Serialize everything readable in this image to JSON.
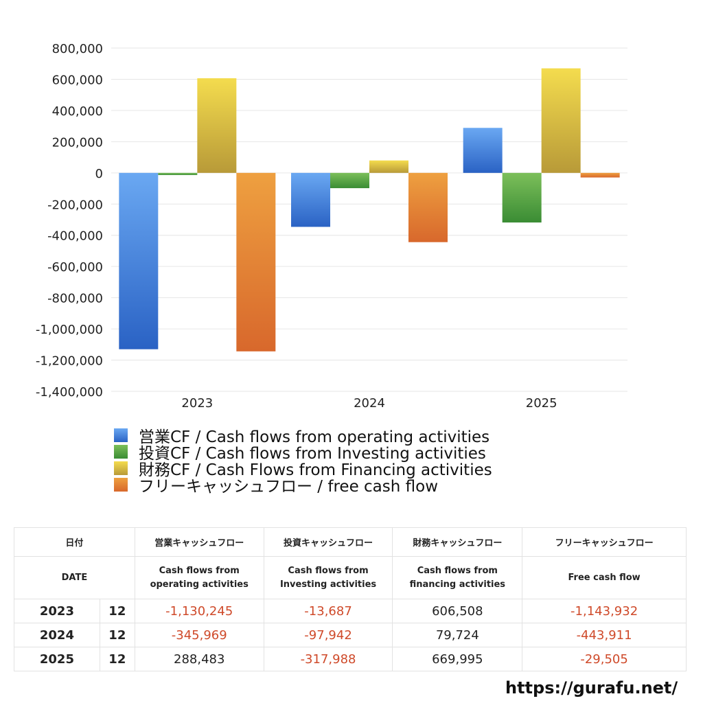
{
  "chart_data": {
    "type": "bar",
    "categories": [
      "2023",
      "2024",
      "2025"
    ],
    "series": [
      {
        "name": "営業CF / Cash flows from operating activities",
        "values": [
          -1130245,
          -345969,
          288483
        ]
      },
      {
        "name": "投資CF / Cash flows from Investing activities",
        "values": [
          -13687,
          -97942,
          -317988
        ]
      },
      {
        "name": "財務CF / Cash Flows from Financing activities",
        "values": [
          606508,
          79724,
          669995
        ]
      },
      {
        "name": "フリーキャッシュフロー / free cash flow",
        "values": [
          -1143932,
          -443911,
          -29505
        ]
      }
    ],
    "ylim": [
      -1400000,
      800000
    ],
    "yticks": [
      800000,
      600000,
      400000,
      200000,
      0,
      -200000,
      -400000,
      -600000,
      -800000,
      -1000000,
      -1200000,
      -1400000
    ],
    "ytick_labels": [
      "800,000",
      "600,000",
      "400,000",
      "200,000",
      "0",
      "-200,000",
      "-400,000",
      "-600,000",
      "-800,000",
      "-1,000,000",
      "-1,200,000",
      "-1,400,000"
    ],
    "grid": true,
    "legend_position": "bottom",
    "colors": [
      {
        "top": "#6aa8f2",
        "bottom": "#2a62c4"
      },
      {
        "top": "#7cbf5a",
        "bottom": "#3a8c34"
      },
      {
        "top": "#f4dc4e",
        "bottom": "#b89a38"
      },
      {
        "top": "#eea040",
        "bottom": "#d8682c"
      }
    ]
  },
  "table": {
    "header1": [
      "日付",
      "営業キャッシュフロー",
      "投資キャッシュフロー",
      "財務キャッシュフロー",
      "フリーキャッシュフロー"
    ],
    "header2": {
      "date": "DATE",
      "op": [
        "Cash flows from",
        "operating activities"
      ],
      "inv": [
        "Cash flows from",
        "Investing activities"
      ],
      "fin": [
        "Cash flows from",
        "financing activities"
      ],
      "fcf": "Free cash flow"
    },
    "rows": [
      {
        "year": "2023",
        "month": "12",
        "op": "-1,130,245",
        "inv": "-13,687",
        "fin": "606,508",
        "fcf": "-1,143,932"
      },
      {
        "year": "2024",
        "month": "12",
        "op": "-345,969",
        "inv": "-97,942",
        "fin": "79,724",
        "fcf": "-443,911"
      },
      {
        "year": "2025",
        "month": "12",
        "op": "288,483",
        "inv": "-317,988",
        "fin": "669,995",
        "fcf": "-29,505"
      }
    ]
  },
  "footer": {
    "url": "https://gurafu.net/"
  }
}
